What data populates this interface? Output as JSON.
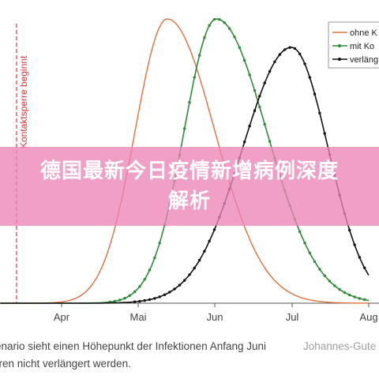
{
  "chart_data": {
    "type": "line",
    "x_tick_labels": [
      "Apr",
      "Mai",
      "Jun",
      "Jul",
      "Aug"
    ],
    "vertical_marker_label": "Kontaktsperre beginnt",
    "legend": [
      "ohne K",
      "mit Ko",
      "verläng"
    ],
    "series": [
      {
        "name": "ohne K",
        "color": "#e0703c",
        "marker": "none",
        "peak_month": "Mai",
        "peak_relative": 1.0
      },
      {
        "name": "mit Ko",
        "color": "#2e8b3a",
        "marker": "dots",
        "peak_month": "Jun",
        "peak_relative": 1.0
      },
      {
        "name": "verläng",
        "color": "#111111",
        "marker": "dots",
        "peak_month": "Jul",
        "peak_relative": 0.9
      }
    ],
    "grid": false,
    "legend_position": "top-right"
  },
  "banner": {
    "title": "德国最新今日疫情新增病例深度解析"
  },
  "caption": {
    "line1": "enario sieht einen Höhepunkt der Infektionen Anfang Juni",
    "line2": "rren nicht verlängert werden.",
    "credit": "Johannes-Gute"
  },
  "colors": {
    "banner": "#ec84b6",
    "marker_line": "#d9363e",
    "orange": "#e0703c",
    "green": "#2e8b3a",
    "black": "#111111"
  }
}
